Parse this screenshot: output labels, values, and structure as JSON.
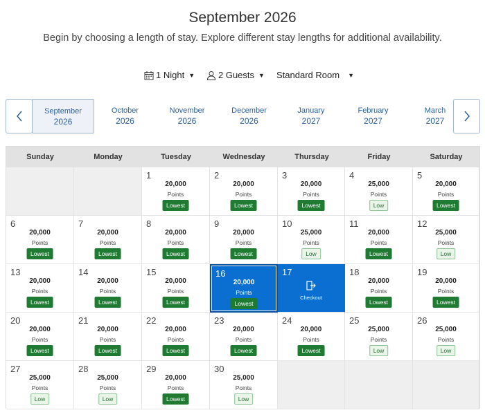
{
  "header": {
    "title": "September 2026",
    "subtitle": "Begin by choosing a length of stay. Explore different stay lengths for additional availability."
  },
  "filters": {
    "nights": "1 Night",
    "guests": "2 Guests",
    "room": "Standard Room"
  },
  "months": [
    {
      "name": "September",
      "year": "2026",
      "active": true
    },
    {
      "name": "October",
      "year": "2026"
    },
    {
      "name": "November",
      "year": "2026"
    },
    {
      "name": "December",
      "year": "2026"
    },
    {
      "name": "January",
      "year": "2027"
    },
    {
      "name": "February",
      "year": "2027"
    },
    {
      "name": "March",
      "year": "2027"
    }
  ],
  "weekdays": [
    "Sunday",
    "Monday",
    "Tuesday",
    "Wednesday",
    "Thursday",
    "Friday",
    "Saturday"
  ],
  "calendar": {
    "first_weekday_offset": 2,
    "points_label": "Points",
    "checkout_label": "Checkout",
    "days": [
      {
        "day": "1",
        "points": "20,000",
        "badge": "Lowest"
      },
      {
        "day": "2",
        "points": "20,000",
        "badge": "Lowest"
      },
      {
        "day": "3",
        "points": "20,000",
        "badge": "Lowest"
      },
      {
        "day": "4",
        "points": "25,000",
        "badge": "Low"
      },
      {
        "day": "5",
        "points": "20,000",
        "badge": "Lowest"
      },
      {
        "day": "6",
        "points": "20,000",
        "badge": "Lowest"
      },
      {
        "day": "7",
        "points": "20,000",
        "badge": "Lowest"
      },
      {
        "day": "8",
        "points": "20,000",
        "badge": "Lowest"
      },
      {
        "day": "9",
        "points": "20,000",
        "badge": "Lowest"
      },
      {
        "day": "10",
        "points": "25,000",
        "badge": "Low"
      },
      {
        "day": "11",
        "points": "20,000",
        "badge": "Lowest"
      },
      {
        "day": "12",
        "points": "25,000",
        "badge": "Low"
      },
      {
        "day": "13",
        "points": "20,000",
        "badge": "Lowest"
      },
      {
        "day": "14",
        "points": "20,000",
        "badge": "Lowest"
      },
      {
        "day": "15",
        "points": "20,000",
        "badge": "Lowest"
      },
      {
        "day": "16",
        "points": "20,000",
        "badge": "Lowest",
        "state": "selected"
      },
      {
        "day": "17",
        "state": "checkout"
      },
      {
        "day": "18",
        "points": "20,000",
        "badge": "Lowest"
      },
      {
        "day": "19",
        "points": "20,000",
        "badge": "Lowest"
      },
      {
        "day": "20",
        "points": "20,000",
        "badge": "Lowest"
      },
      {
        "day": "21",
        "points": "20,000",
        "badge": "Lowest"
      },
      {
        "day": "22",
        "points": "20,000",
        "badge": "Lowest"
      },
      {
        "day": "23",
        "points": "20,000",
        "badge": "Lowest"
      },
      {
        "day": "24",
        "points": "20,000",
        "badge": "Lowest"
      },
      {
        "day": "25",
        "points": "25,000",
        "badge": "Low"
      },
      {
        "day": "26",
        "points": "25,000",
        "badge": "Low"
      },
      {
        "day": "27",
        "points": "25,000",
        "badge": "Low"
      },
      {
        "day": "28",
        "points": "25,000",
        "badge": "Low"
      },
      {
        "day": "29",
        "points": "20,000",
        "badge": "Lowest"
      },
      {
        "day": "30",
        "points": "25,000",
        "badge": "Low"
      }
    ]
  },
  "colors": {
    "accent": "#0a6fd1",
    "lowest_badge": "#1f7a32",
    "low_badge_bg": "#eaf5ea",
    "month_link": "#2a5f9e"
  },
  "icons": {
    "nights": "calendar-icon",
    "guests": "person-icon",
    "prev": "chevron-left-icon",
    "next": "chevron-right-icon",
    "checkout": "door-exit-icon"
  }
}
